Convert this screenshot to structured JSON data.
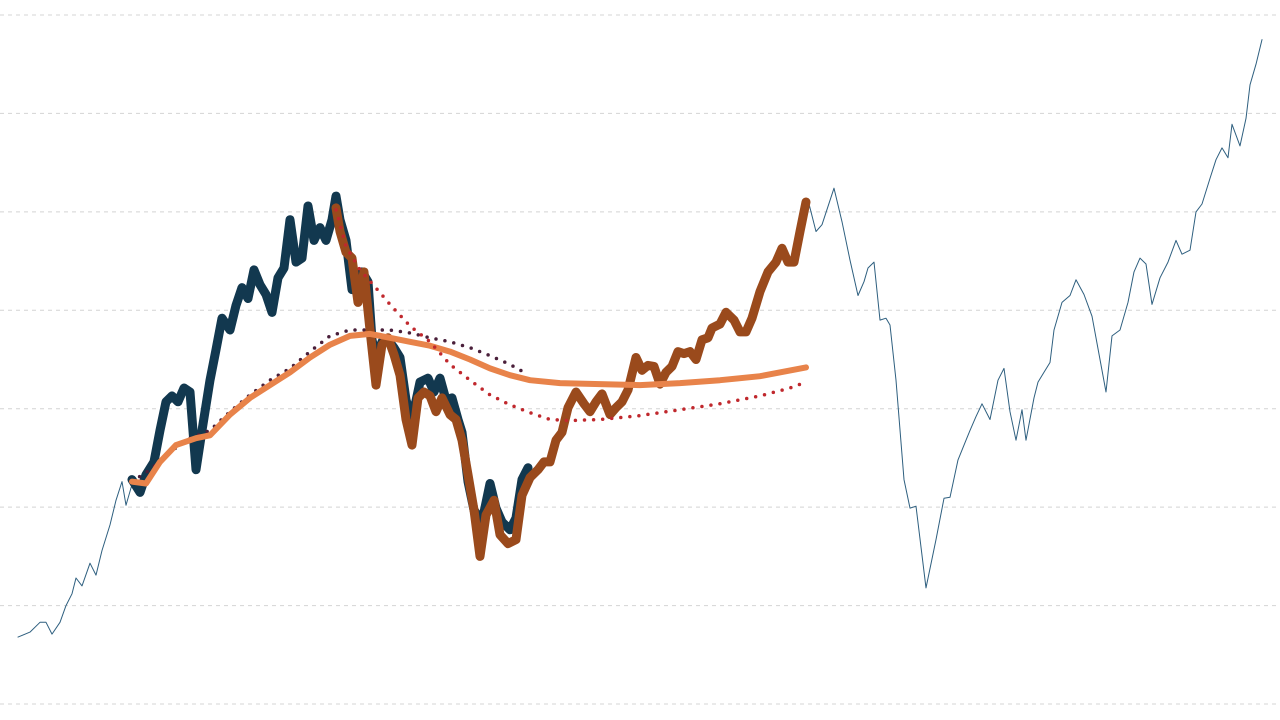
{
  "chart_data": {
    "type": "line",
    "grid": true,
    "xlim": [
      0,
      1244
    ],
    "ylim": [
      0,
      700
    ],
    "yticks": [
      0,
      100,
      200,
      300,
      400,
      500,
      600,
      700
    ],
    "series": [
      {
        "color": "#2e5f7f",
        "width": 1,
        "dash": "solid",
        "x": [
          0,
          12,
          22,
          28,
          34,
          42,
          48,
          54,
          58,
          64,
          72,
          78,
          84,
          92,
          98,
          104,
          108,
          114,
          null,
          790,
          798,
          804,
          816,
          824,
          832,
          840,
          846,
          850,
          856,
          862,
          868,
          872,
          878,
          886,
          892,
          898,
          908,
          918,
          926,
          932,
          940,
          948,
          952,
          958,
          964,
          972,
          980,
          986,
          992,
          998,
          1004,
          1008,
          1016,
          1020,
          1026,
          1032,
          1036,
          1044,
          1052,
          1058,
          1066,
          1074,
          1082,
          1088,
          1094,
          1102,
          1110,
          1116,
          1122,
          1128,
          1134,
          1142,
          1150,
          1158,
          1164,
          1172,
          1178,
          1184,
          1192,
          1198,
          1204,
          1210,
          1214,
          1222,
          1228,
          1232,
          1238,
          1244
        ],
        "values": [
          68,
          73,
          83,
          83,
          71,
          83,
          100,
          112,
          128,
          120,
          143,
          131,
          156,
          182,
          207,
          226,
          202,
          223,
          null,
          512,
          480,
          487,
          524,
          490,
          451,
          415,
          429,
          443,
          449,
          390,
          392,
          385,
          329,
          228,
          199,
          201,
          118,
          167,
          209,
          210,
          248,
          268,
          278,
          292,
          305,
          289,
          329,
          341,
          297,
          268,
          299,
          268,
          311,
          327,
          337,
          347,
          380,
          408,
          415,
          431,
          416,
          394,
          350,
          317,
          374,
          380,
          408,
          439,
          453,
          447,
          406,
          433,
          449,
          471,
          457,
          461,
          500,
          508,
          534,
          553,
          565,
          555,
          589,
          567,
          595,
          629,
          650,
          675
        ]
      },
      {
        "color": "#12384f",
        "width": 9,
        "dash": "solid",
        "x": [
          114,
          122,
          128,
          136,
          142,
          148,
          154,
          160,
          166,
          172,
          178,
          184,
          192,
          198,
          204,
          212,
          218,
          224,
          230,
          236,
          242,
          248,
          254,
          260,
          266,
          272,
          278,
          284,
          290,
          296,
          302,
          308,
          314,
          318,
          322,
          328,
          334,
          340,
          344,
          350,
          354,
          358,
          364,
          370,
          376,
          382,
          388,
          394,
          402,
          410,
          416,
          422,
          428,
          434,
          440,
          444,
          450,
          456,
          464,
          472,
          478,
          484,
          492,
          498,
          504,
          510
        ],
        "values": [
          228,
          215,
          233,
          246,
          278,
          307,
          313,
          307,
          321,
          317,
          238,
          278,
          329,
          360,
          392,
          380,
          405,
          423,
          412,
          441,
          426,
          416,
          398,
          433,
          443,
          492,
          449,
          453,
          506,
          471,
          484,
          471,
          492,
          516,
          492,
          471,
          421,
          429,
          439,
          429,
          370,
          352,
          368,
          370,
          362,
          352,
          309,
          289,
          327,
          331,
          317,
          331,
          309,
          311,
          289,
          276,
          226,
          197,
          185,
          224,
          199,
          185,
          177,
          189,
          228,
          240
        ]
      },
      {
        "color": "#4a1f3a",
        "width": 3.5,
        "dash": "dotted",
        "x": [
          114,
          132,
          152,
          172,
          192,
          212,
          232,
          252,
          272,
          292,
          312,
          332,
          352,
          372,
          392,
          412,
          432,
          452,
          472,
          492,
          506
        ],
        "values": [
          226,
          238,
          256,
          270,
          278,
          297,
          314,
          329,
          341,
          358,
          374,
          380,
          380,
          380,
          377,
          372,
          368,
          362,
          354,
          345,
          337
        ]
      },
      {
        "color": "#9a4a1c",
        "width": 9,
        "dash": "solid",
        "x": [
          318,
          322,
          328,
          334,
          340,
          346,
          352,
          358,
          364,
          370,
          376,
          382,
          388,
          394,
          400,
          406,
          412,
          418,
          424,
          432,
          438,
          444,
          450,
          456,
          462,
          468,
          476,
          482,
          490,
          498,
          504,
          512,
          520,
          526,
          532,
          538,
          544,
          550,
          558,
          566,
          572,
          578,
          584,
          592,
          598,
          604,
          610,
          618,
          624,
          630,
          636,
          642,
          648,
          654,
          660,
          666,
          672,
          678,
          684,
          690,
          694,
          702,
          708,
          716,
          722,
          728,
          734,
          742,
          750,
          758,
          764,
          770,
          776,
          782,
          788
        ],
        "values": [
          504,
          480,
          459,
          453,
          408,
          439,
          380,
          324,
          365,
          372,
          355,
          334,
          289,
          263,
          311,
          317,
          313,
          297,
          311,
          294,
          289,
          268,
          233,
          197,
          150,
          192,
          207,
          172,
          163,
          167,
          212,
          230,
          238,
          246,
          246,
          268,
          276,
          301,
          317,
          305,
          297,
          307,
          315,
          294,
          301,
          307,
          319,
          352,
          339,
          344,
          343,
          325,
          337,
          343,
          358,
          356,
          358,
          350,
          370,
          372,
          382,
          386,
          398,
          390,
          378,
          378,
          392,
          419,
          439,
          449,
          463,
          449,
          449,
          480,
          510
        ]
      },
      {
        "color": "#e8834a",
        "width": 6,
        "dash": "solid",
        "x": [
          114,
          128,
          142,
          158,
          178,
          192,
          212,
          232,
          252,
          272,
          292,
          312,
          332,
          352,
          372,
          392,
          412,
          432,
          452,
          472,
          492,
          512,
          542,
          582,
          622,
          662,
          702,
          742,
          788
        ],
        "values": [
          226,
          224,
          246,
          263,
          270,
          273,
          294,
          311,
          324,
          337,
          352,
          365,
          374,
          376,
          372,
          368,
          364,
          358,
          350,
          341,
          334,
          329,
          326,
          325,
          324,
          326,
          329,
          333,
          342
        ]
      },
      {
        "color": "#c0282d",
        "width": 3.5,
        "dash": "dotted",
        "x": [
          318,
          328,
          342,
          356,
          372,
          392,
          412,
          432,
          452,
          472,
          492,
          512,
          532,
          552,
          582,
          622,
          662,
          702,
          742,
          772,
          788
        ],
        "values": [
          502,
          465,
          441,
          425,
          406,
          384,
          368,
          345,
          329,
          314,
          304,
          296,
          289,
          288,
          289,
          293,
          299,
          305,
          313,
          321,
          327
        ]
      }
    ]
  }
}
